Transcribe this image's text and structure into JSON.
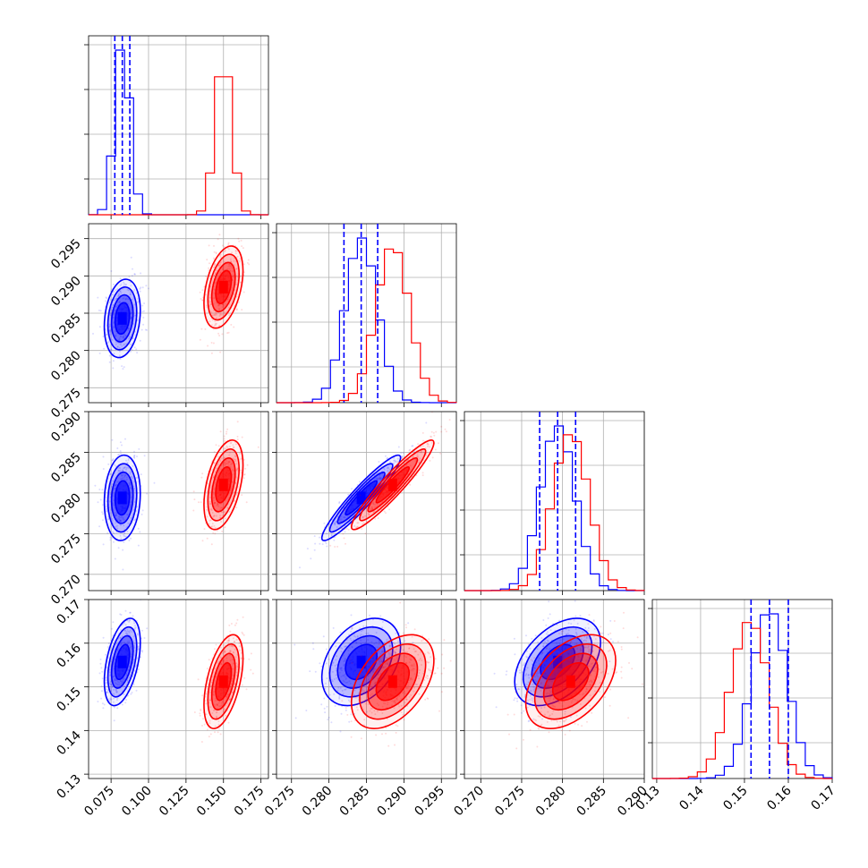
{
  "chart_data": {
    "type": "scatter",
    "kind": "corner-plot",
    "grid": true,
    "colors": {
      "blue": "#0000ff",
      "red": "#ff0000"
    },
    "parameters": [
      {
        "range": [
          0.06,
          0.18
        ],
        "ticks": [
          0.075,
          0.1,
          0.125,
          0.15,
          0.175
        ],
        "tick_labels": [
          "0.075",
          "0.100",
          "0.125",
          "0.150",
          "0.175"
        ]
      },
      {
        "range": [
          0.273,
          0.297
        ],
        "ticks": [
          0.275,
          0.28,
          0.285,
          0.29,
          0.295
        ],
        "tick_labels": [
          "0.275",
          "0.280",
          "0.285",
          "0.290",
          "0.295"
        ]
      },
      {
        "range": [
          0.268,
          0.29
        ],
        "ticks": [
          0.27,
          0.275,
          0.28,
          0.285,
          0.29
        ],
        "tick_labels": [
          "0.270",
          "0.275",
          "0.280",
          "0.285",
          "0.290"
        ]
      },
      {
        "range": [
          0.129,
          0.17
        ],
        "ticks": [
          0.13,
          0.14,
          0.15,
          0.16,
          0.17
        ],
        "tick_labels": [
          "0.13",
          "0.14",
          "0.15",
          "0.16",
          "0.17"
        ]
      }
    ],
    "series": [
      {
        "color": "#0000ff",
        "mean": [
          0.0825,
          0.2843,
          0.2794,
          0.1557
        ],
        "sd": [
          0.0048,
          0.0021,
          0.0021,
          0.004
        ],
        "quantiles_16_50_84": [
          [
            0.0775,
            0.0825,
            0.0875
          ],
          [
            0.282,
            0.2843,
            0.2865
          ],
          [
            0.2772,
            0.2794,
            0.2816
          ],
          [
            0.1515,
            0.1557,
            0.16
          ]
        ],
        "corr": {
          "0-1": 0.2,
          "0-2": 0.1,
          "0-3": 0.45,
          "1-2": 0.94,
          "1-3": 0.35,
          "2-3": 0.45
        }
      },
      {
        "color": "#ff0000",
        "mean": [
          0.15,
          0.2885,
          0.281,
          0.1512
        ],
        "sd": [
          0.0052,
          0.0022,
          0.0022,
          0.0043
        ],
        "corr": {
          "0-1": 0.4,
          "0-2": 0.45,
          "0-3": 0.5,
          "1-2": 0.94,
          "1-3": 0.45,
          "2-3": 0.45
        }
      }
    ]
  }
}
